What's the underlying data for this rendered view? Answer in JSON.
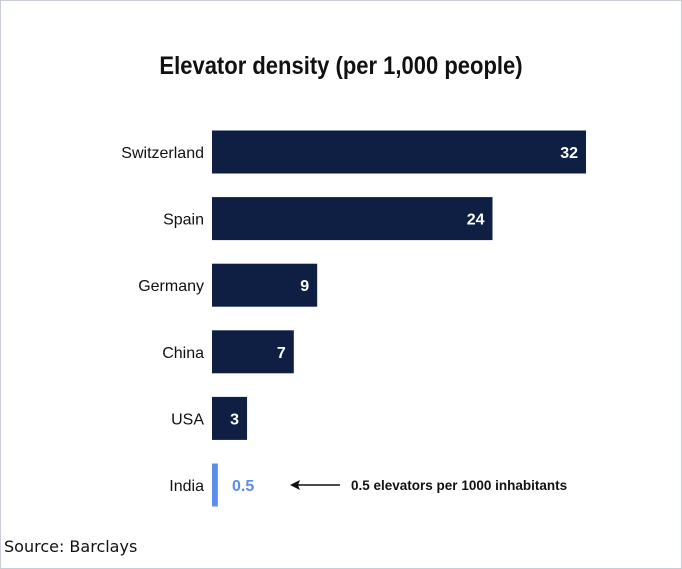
{
  "chart_data": {
    "type": "bar",
    "orientation": "horizontal",
    "title": "Elevator density (per 1,000 people)",
    "xlabel": "",
    "ylabel": "",
    "categories": [
      "Switzerland",
      "Spain",
      "Germany",
      "China",
      "USA",
      "India"
    ],
    "values": [
      32,
      24,
      9,
      7,
      3,
      0.5
    ],
    "value_labels": [
      "32",
      "24",
      "9",
      "7",
      "3",
      "0.5"
    ],
    "xlim": [
      0,
      32
    ],
    "grid": false,
    "legend": "none",
    "annotation": {
      "category": "India",
      "text": "0.5 elevators per 1000 inhabitants"
    },
    "colors": {
      "bar": "#0f1f44",
      "highlight_bar": "#5b8def",
      "value_label_inside": "#ffffff",
      "value_label_highlight": "#5b8def"
    }
  },
  "source": "Source: Barclays"
}
